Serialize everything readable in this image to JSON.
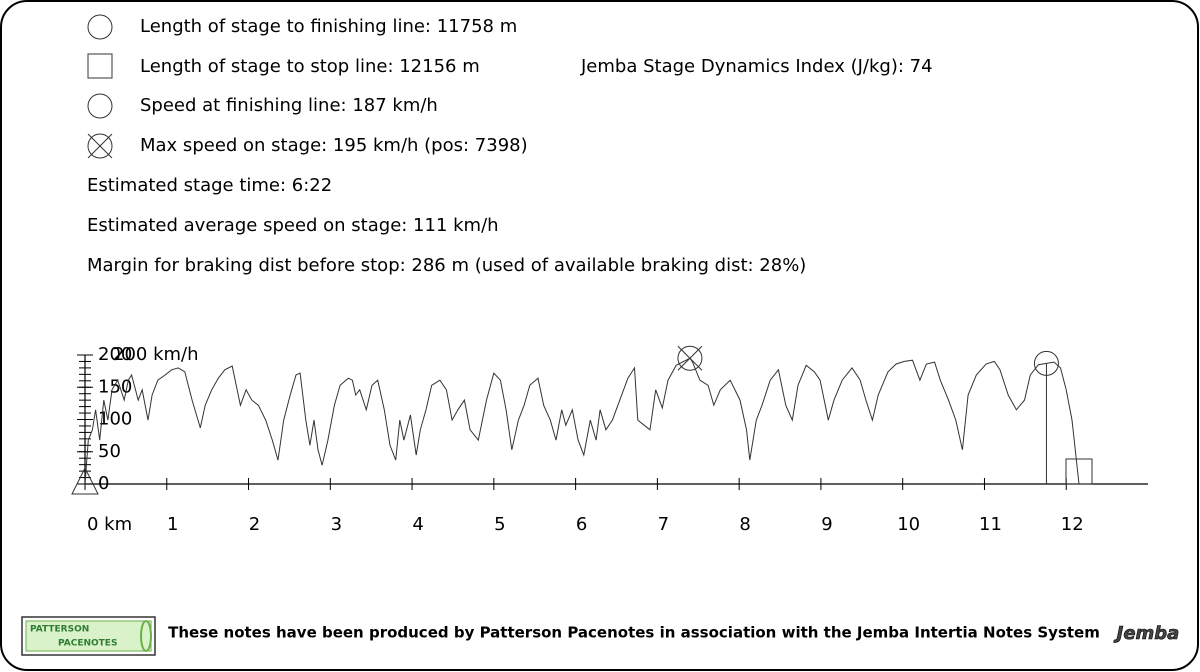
{
  "info": {
    "finish_length": "Length of stage to finishing line: 11758 m",
    "stop_length": "Length of stage to stop line: 12156 m",
    "dynamics_index": "Jemba Stage Dynamics Index (J/kg): 74",
    "finish_speed": "Speed at finishing line: 187 km/h",
    "max_speed": "Max speed on stage: 195 km/h (pos: 7398)",
    "stage_time": "Estimated stage time: 6:22",
    "avg_speed": "Estimated average speed on stage: 111 km/h",
    "braking_margin": "Margin for braking dist before stop: 286 m (used of available braking dist: 28%)"
  },
  "chart_data": {
    "type": "line",
    "y_unit_label": "200 km/h",
    "xlim": [
      0,
      13
    ],
    "ylim": [
      0,
      200
    ],
    "xticks": [
      {
        "value": 0,
        "label": "0 km"
      },
      1,
      2,
      3,
      4,
      5,
      6,
      7,
      8,
      9,
      10,
      11,
      12
    ],
    "yticks": [
      0,
      50,
      100,
      150,
      200
    ],
    "yminorticks": [
      0,
      10,
      20,
      30,
      40,
      50,
      60,
      70,
      80,
      90,
      100,
      110,
      120,
      130,
      140,
      150,
      160,
      170,
      180,
      190,
      200
    ],
    "color": "#333333",
    "x": [
      0,
      0.04,
      0.09,
      0.13,
      0.18,
      0.23,
      0.28,
      0.33,
      0.4,
      0.48,
      0.53,
      0.57,
      0.65,
      0.7,
      0.77,
      0.82,
      0.89,
      0.98,
      1.06,
      1.14,
      1.22,
      1.31,
      1.41,
      1.47,
      1.55,
      1.63,
      1.71,
      1.8,
      1.9,
      1.97,
      2.04,
      2.12,
      2.21,
      2.29,
      2.36,
      2.43,
      2.51,
      2.58,
      2.63,
      2.7,
      2.75,
      2.8,
      2.85,
      2.9,
      2.97,
      3.05,
      3.12,
      3.22,
      3.27,
      3.31,
      3.36,
      3.44,
      3.51,
      3.58,
      3.66,
      3.73,
      3.8,
      3.85,
      3.9,
      3.98,
      4.05,
      4.1,
      4.17,
      4.24,
      4.34,
      4.42,
      4.49,
      4.56,
      4.64,
      4.71,
      4.81,
      4.91,
      5.0,
      5.08,
      5.15,
      5.22,
      5.3,
      5.37,
      5.44,
      5.54,
      5.61,
      5.69,
      5.76,
      5.83,
      5.88,
      5.96,
      6.03,
      6.1,
      6.18,
      6.25,
      6.3,
      6.37,
      6.45,
      6.54,
      6.64,
      6.72,
      6.76,
      6.84,
      6.91,
      6.98,
      7.06,
      7.13,
      7.23,
      7.4,
      7.43,
      7.52,
      7.62,
      7.69,
      7.77,
      7.89,
      8.01,
      8.09,
      8.13,
      8.21,
      8.28,
      8.38,
      8.48,
      8.57,
      8.65,
      8.72,
      8.82,
      8.92,
      8.99,
      9.09,
      9.16,
      9.26,
      9.38,
      9.48,
      9.55,
      9.63,
      9.7,
      9.82,
      9.92,
      10.02,
      10.12,
      10.21,
      10.29,
      10.39,
      10.46,
      10.56,
      10.65,
      10.73,
      10.8,
      10.9,
      11.02,
      11.12,
      11.19,
      11.29,
      11.39,
      11.49,
      11.56,
      11.66,
      11.758,
      11.85,
      11.93,
      12.0,
      12.07,
      12.156
    ],
    "values": [
      0,
      68,
      84,
      115,
      68,
      130,
      99,
      146,
      161,
      130,
      161,
      169,
      130,
      146,
      99,
      138,
      161,
      169,
      177,
      180,
      174,
      130,
      87,
      122,
      146,
      164,
      177,
      183,
      122,
      146,
      130,
      122,
      99,
      68,
      37,
      99,
      138,
      169,
      172,
      99,
      60,
      99,
      53,
      29,
      68,
      122,
      153,
      164,
      161,
      138,
      146,
      115,
      153,
      161,
      115,
      60,
      37,
      99,
      68,
      107,
      45,
      84,
      115,
      153,
      161,
      146,
      99,
      115,
      130,
      84,
      68,
      130,
      172,
      161,
      115,
      53,
      99,
      122,
      153,
      164,
      122,
      99,
      68,
      115,
      91,
      115,
      68,
      45,
      99,
      68,
      115,
      84,
      99,
      130,
      164,
      180,
      99,
      91,
      84,
      146,
      118,
      161,
      184,
      195,
      189,
      161,
      153,
      122,
      146,
      161,
      130,
      84,
      37,
      99,
      122,
      161,
      177,
      122,
      99,
      153,
      184,
      174,
      161,
      99,
      130,
      161,
      180,
      161,
      130,
      99,
      138,
      174,
      186,
      190,
      192,
      161,
      186,
      189,
      161,
      130,
      99,
      53,
      138,
      169,
      186,
      190,
      177,
      138,
      115,
      130,
      169,
      185,
      187,
      189,
      180,
      146,
      99,
      0
    ],
    "markers": {
      "max_speed": {
        "x": 7.398,
        "y": 195
      },
      "finish": {
        "x": 11.758,
        "y": 187
      },
      "stop": {
        "x": 12.156,
        "y": 0
      }
    }
  },
  "footer": {
    "logo_top": "PATTERSON",
    "logo_bottom": "PACENOTES",
    "text": "These notes have been produced by Patterson Pacenotes in association with the Jemba Intertia Notes System",
    "brand": "Jemba"
  }
}
